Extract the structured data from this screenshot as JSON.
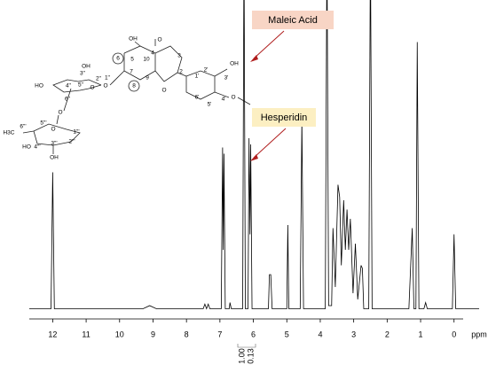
{
  "chart_data": {
    "type": "line",
    "xlabel": "ppm",
    "xlim": [
      12.7,
      -0.75
    ],
    "ylim": [
      0,
      100
    ],
    "xticks": [
      12,
      11,
      10,
      9,
      8,
      7,
      6,
      5,
      4,
      3,
      2,
      1,
      0
    ],
    "series": [
      {
        "color": "#000000",
        "x": [
          12.7,
          12.05,
          12.0,
          11.95,
          9.3,
          9.1,
          8.9,
          7.5,
          7.45,
          7.4,
          7.35,
          7.3,
          6.96,
          6.92,
          6.9,
          6.88,
          6.84,
          6.72,
          6.7,
          6.66,
          6.32,
          6.28,
          6.24,
          6.16,
          6.13,
          6.1,
          6.08,
          6.04,
          5.55,
          5.52,
          5.48,
          5.44,
          5.0,
          4.97,
          4.94,
          4.6,
          4.55,
          4.5,
          3.85,
          3.8,
          3.75,
          3.66,
          3.62,
          3.55,
          3.47,
          3.42,
          3.37,
          3.3,
          3.25,
          3.2,
          3.15,
          3.1,
          3.02,
          2.95,
          2.88,
          2.78,
          2.74,
          2.7,
          2.55,
          2.5,
          2.45,
          1.35,
          1.25,
          1.2,
          1.14,
          1.1,
          1.05,
          0.9,
          0.85,
          0.8,
          0.05,
          0,
          -0.05,
          -0.75
        ],
        "values": [
          1,
          1,
          45,
          1,
          1,
          2,
          1,
          1,
          2.5,
          1,
          2.5,
          1,
          1,
          53,
          20,
          51,
          1,
          1,
          3,
          1,
          1,
          120,
          1,
          1,
          56,
          25,
          54,
          1,
          1,
          12,
          12,
          1,
          1,
          28,
          1,
          1,
          62,
          1,
          1,
          120,
          2,
          2,
          27,
          8,
          41,
          37,
          15,
          36,
          20,
          33,
          20,
          30,
          6,
          22,
          4,
          15,
          14,
          1,
          1,
          120,
          1,
          1,
          27,
          1,
          1,
          87,
          1,
          1,
          3,
          1,
          1,
          25,
          1,
          1
        ]
      }
    ],
    "annotations": [
      "Maleic Acid",
      "Hesperidin"
    ],
    "integral_labels": [
      "1.00",
      "0.13"
    ]
  },
  "structure": {
    "labels": [
      "OH",
      "O",
      "4",
      "3",
      "10",
      "5",
      "6",
      "7",
      "9",
      "2",
      "8",
      "O",
      "1'",
      "2'",
      "3'",
      "OH",
      "6'",
      "5'",
      "4'",
      "O",
      "O",
      "3''",
      "OH",
      "2''",
      "1''",
      "HO",
      "4''",
      "5''",
      "O",
      "6''",
      "O",
      "5'''",
      "O",
      "1'''",
      "H3C",
      "6'''",
      "HO",
      "4'''",
      "3'''",
      "2'''",
      "OH"
    ]
  }
}
